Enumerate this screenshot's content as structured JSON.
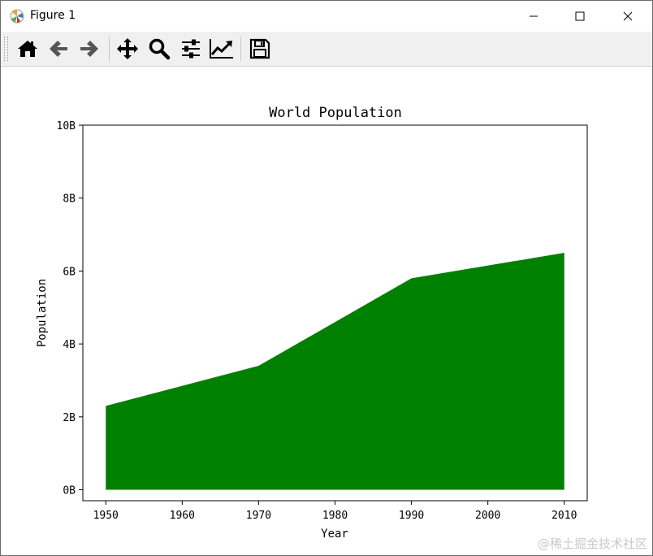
{
  "window": {
    "title": "Figure 1",
    "controls": {
      "minimize": "minimize",
      "maximize": "maximize",
      "close": "close"
    }
  },
  "toolbar": {
    "buttons": [
      {
        "name": "home",
        "icon": "home-icon"
      },
      {
        "name": "back",
        "icon": "arrow-left-icon"
      },
      {
        "name": "forward",
        "icon": "arrow-right-icon"
      },
      {
        "name": "pan",
        "icon": "move-icon"
      },
      {
        "name": "zoom",
        "icon": "magnifier-icon"
      },
      {
        "name": "configure-subplots",
        "icon": "sliders-icon"
      },
      {
        "name": "edit-axis",
        "icon": "line-chart-icon"
      },
      {
        "name": "save",
        "icon": "floppy-icon"
      }
    ]
  },
  "chart_data": {
    "type": "area",
    "title": "World Population",
    "xlabel": "Year",
    "ylabel": "Population",
    "x": [
      1950,
      1970,
      1990,
      2010
    ],
    "series": [
      {
        "values": [
          2.3,
          3.4,
          5.8,
          6.5
        ],
        "color": "#008000"
      }
    ],
    "xticks": [
      1950,
      1960,
      1970,
      1980,
      1990,
      2000,
      2010
    ],
    "xticklabels": [
      "1950",
      "1960",
      "1970",
      "1980",
      "1990",
      "2000",
      "2010"
    ],
    "yticks": [
      0,
      2,
      4,
      6,
      8,
      10
    ],
    "yticklabels": [
      "0B",
      "2B",
      "4B",
      "6B",
      "8B",
      "10B"
    ],
    "xlim": [
      1947,
      2013
    ],
    "ylim": [
      -0.3,
      10
    ],
    "grid": false
  },
  "watermark": "@稀土掘金技术社区"
}
